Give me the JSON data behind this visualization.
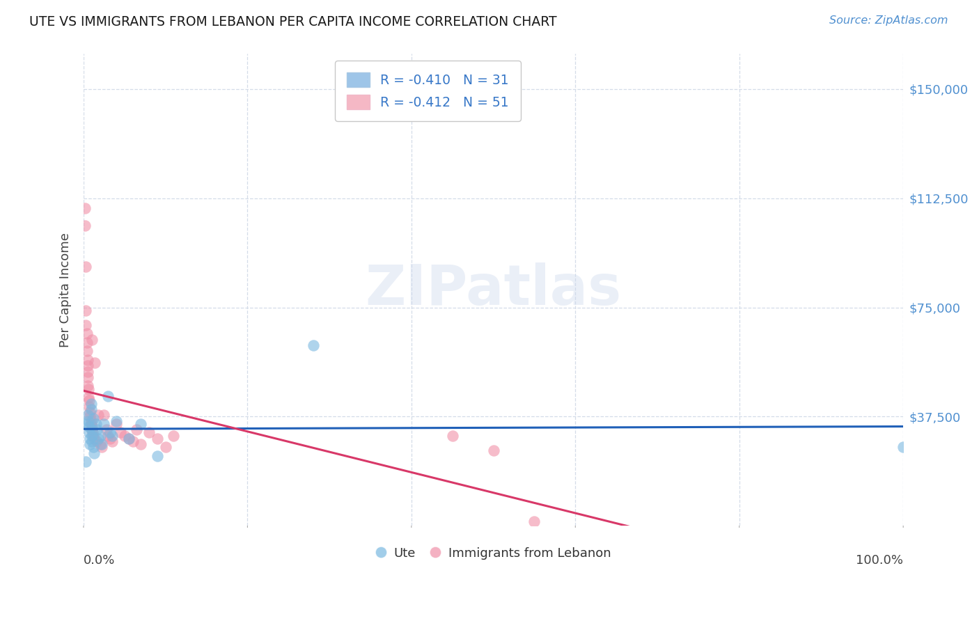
{
  "title": "UTE VS IMMIGRANTS FROM LEBANON PER CAPITA INCOME CORRELATION CHART",
  "source": "Source: ZipAtlas.com",
  "ylabel": "Per Capita Income",
  "ytick_labels": [
    "$37,500",
    "$75,000",
    "$112,500",
    "$150,000"
  ],
  "ytick_values": [
    37500,
    75000,
    112500,
    150000
  ],
  "ylim_min": 0,
  "ylim_max": 162000,
  "xlim_min": 0.0,
  "xlim_max": 1.0,
  "watermark_text": "ZIPatlas",
  "legend_top": [
    {
      "label": "R = -0.410   N = 31",
      "facecolor": "#9ec5e8"
    },
    {
      "label": "R = -0.412   N = 51",
      "facecolor": "#f5b8c5"
    }
  ],
  "legend_bottom": [
    "Ute",
    "Immigrants from Lebanon"
  ],
  "ute_color": "#7ab8e0",
  "leb_color": "#f090a8",
  "ute_line_color": "#2060b8",
  "leb_line_color": "#d83868",
  "legend_label_color": "#3878c8",
  "grid_color": "#d4dce8",
  "tick_color": "#5090d0",
  "title_color": "#1a1a1a",
  "source_color": "#5090d0",
  "background": "#ffffff",
  "ute_x": [
    0.003,
    0.004,
    0.005,
    0.006,
    0.007,
    0.007,
    0.008,
    0.008,
    0.009,
    0.009,
    0.01,
    0.01,
    0.01,
    0.012,
    0.012,
    0.013,
    0.015,
    0.016,
    0.018,
    0.02,
    0.022,
    0.025,
    0.03,
    0.032,
    0.035,
    0.04,
    0.055,
    0.07,
    0.09,
    0.28,
    1.0
  ],
  "ute_y": [
    22000,
    35000,
    38000,
    36000,
    34000,
    32000,
    30000,
    28000,
    42000,
    40000,
    33000,
    31000,
    29000,
    37000,
    27000,
    25000,
    35000,
    33000,
    30000,
    31000,
    28000,
    35000,
    44500,
    32000,
    31000,
    36000,
    30000,
    35000,
    24000,
    62000,
    27000
  ],
  "leb_x": [
    0.002,
    0.002,
    0.003,
    0.003,
    0.003,
    0.004,
    0.004,
    0.004,
    0.005,
    0.005,
    0.005,
    0.005,
    0.005,
    0.006,
    0.006,
    0.007,
    0.007,
    0.008,
    0.008,
    0.009,
    0.009,
    0.01,
    0.01,
    0.01,
    0.011,
    0.012,
    0.013,
    0.014,
    0.016,
    0.018,
    0.02,
    0.022,
    0.025,
    0.028,
    0.03,
    0.032,
    0.035,
    0.04,
    0.045,
    0.05,
    0.055,
    0.06,
    0.065,
    0.07,
    0.08,
    0.09,
    0.1,
    0.11,
    0.45,
    0.5,
    0.55
  ],
  "leb_y": [
    109000,
    103000,
    89000,
    74000,
    69000,
    66000,
    63000,
    60000,
    57000,
    55000,
    53000,
    51000,
    48000,
    47000,
    44000,
    43000,
    41000,
    39000,
    37500,
    36000,
    35000,
    34000,
    33000,
    64000,
    32000,
    31000,
    30000,
    56000,
    29000,
    38000,
    28000,
    27000,
    38000,
    33000,
    31000,
    30000,
    29000,
    35000,
    32000,
    31000,
    30000,
    29000,
    33000,
    28000,
    32000,
    30000,
    27000,
    31000,
    31000,
    26000,
    1500
  ]
}
